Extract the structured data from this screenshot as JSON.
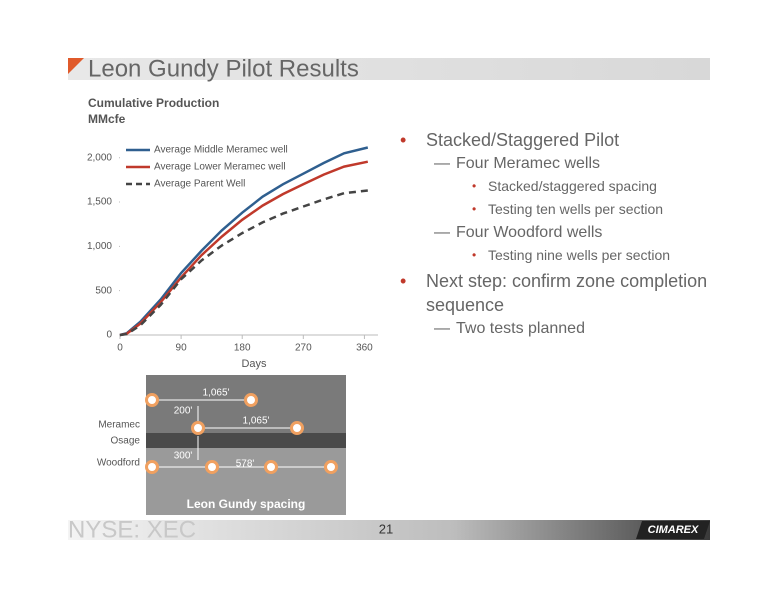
{
  "header": {
    "title": "Leon Gundy Pilot Results"
  },
  "chart_data": {
    "type": "line",
    "title": "Cumulative Production",
    "units": "MMcfe",
    "x_label": "Days",
    "x": [
      0,
      10,
      30,
      60,
      90,
      120,
      150,
      180,
      210,
      240,
      270,
      300,
      330,
      365
    ],
    "series": [
      {
        "name": "Average Middle Meramec well",
        "color": "#2f5f8f",
        "dash": false,
        "values": [
          0,
          20,
          150,
          400,
          700,
          950,
          1180,
          1380,
          1560,
          1700,
          1820,
          1940,
          2050,
          2115
        ]
      },
      {
        "name": "Average Lower Meramec well",
        "color": "#c0392b",
        "dash": false,
        "values": [
          0,
          15,
          130,
          370,
          650,
          900,
          1110,
          1300,
          1460,
          1590,
          1700,
          1810,
          1900,
          1955
        ]
      },
      {
        "name": "Average Parent Well",
        "color": "#444444",
        "dash": true,
        "values": [
          0,
          10,
          110,
          340,
          630,
          840,
          1010,
          1150,
          1270,
          1370,
          1450,
          1530,
          1600,
          1630
        ]
      }
    ],
    "xlim": [
      0,
      380
    ],
    "xticks": [
      0,
      90,
      180,
      270,
      360
    ],
    "ylim": [
      0,
      2200
    ],
    "yticks": [
      0,
      500,
      {
        "value": 1000,
        "label": "1,000"
      },
      {
        "value": 1500,
        "label": "1,500"
      },
      {
        "value": 2000,
        "label": "2,000"
      }
    ],
    "grid": false,
    "legend": "top-left"
  },
  "bullets": [
    {
      "level": 0,
      "text": "Stacked/Staggered Pilot"
    },
    {
      "level": 1,
      "text": "Four Meramec wells"
    },
    {
      "level": 2,
      "text": "Stacked/staggered spacing"
    },
    {
      "level": 2,
      "text": "Testing ten wells per section"
    },
    {
      "level": 1,
      "text": "Four Woodford wells"
    },
    {
      "level": 2,
      "text": "Testing nine wells per section"
    },
    {
      "level": 0,
      "text": "Next step: confirm zone completion sequence"
    },
    {
      "level": 1,
      "text": "Two tests planned"
    }
  ],
  "diagram": {
    "zones": [
      "Meramec",
      "Osage",
      "Woodford"
    ],
    "spacings": [
      "1,065'",
      "200'",
      "1,065'",
      "300'",
      "578'"
    ],
    "caption": "Leon Gundy spacing"
  },
  "footer": {
    "ticker": "NYSE: XEC",
    "page": "21",
    "logo": "CIMAREX"
  }
}
